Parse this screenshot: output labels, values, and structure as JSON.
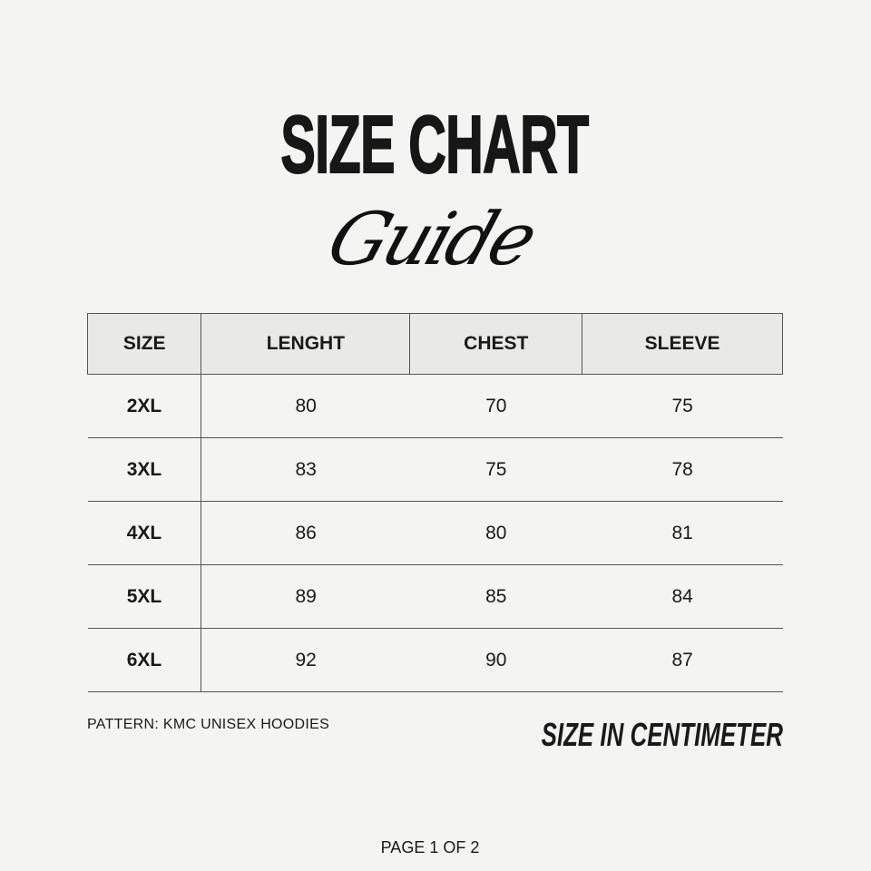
{
  "title": "SIZE CHART",
  "subtitle": "Guide",
  "table": {
    "headers": [
      "SIZE",
      "LENGHT",
      "CHEST",
      "SLEEVE"
    ],
    "rows": [
      [
        "2XL",
        "80",
        "70",
        "75"
      ],
      [
        "3XL",
        "83",
        "75",
        "78"
      ],
      [
        "4XL",
        "86",
        "80",
        "81"
      ],
      [
        "5XL",
        "89",
        "85",
        "84"
      ],
      [
        "6XL",
        "92",
        "90",
        "87"
      ]
    ]
  },
  "pattern": "PATTERN: KMC UNISEX HOODIES",
  "unit_note": "SIZE IN CENTIMETER",
  "page": "PAGE 1 OF 2",
  "colors": {
    "background": "#f4f4f2",
    "header_bg": "#e9e9e5",
    "text": "#1a1a1a"
  }
}
